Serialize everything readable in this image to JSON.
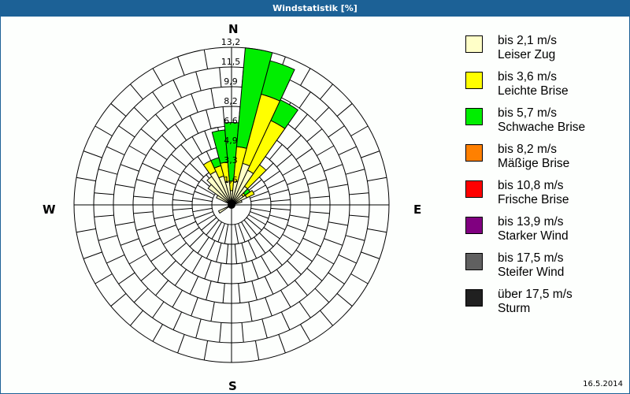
{
  "window": {
    "title": "Windstatistik [%]",
    "date": "16.5.2014"
  },
  "compass": {
    "n": "N",
    "e": "E",
    "s": "S",
    "w": "W"
  },
  "legend": [
    {
      "range": "bis 2,1 m/s",
      "name": "Leiser Zug",
      "color": "#ffffc8"
    },
    {
      "range": "bis 3,6 m/s",
      "name": "Leichte Brise",
      "color": "#ffff00"
    },
    {
      "range": "bis 5,7 m/s",
      "name": "Schwache Brise",
      "color": "#00ee00"
    },
    {
      "range": "bis 8,2 m/s",
      "name": "Mäßige Brise",
      "color": "#ff8000"
    },
    {
      "range": "bis 10,8 m/s",
      "name": "Frische Brise",
      "color": "#ff0000"
    },
    {
      "range": "bis 13,9 m/s",
      "name": "Starker Wind",
      "color": "#800080"
    },
    {
      "range": "bis 17,5 m/s",
      "name": "Steifer Wind",
      "color": "#606060"
    },
    {
      "range": "über 17,5 m/s",
      "name": "Sturm",
      "color": "#202020"
    }
  ],
  "chart_data": {
    "type": "polar-stacked-bar",
    "title": "Windstatistik [%]",
    "unit": "%",
    "radial_ticks": [
      "1,6",
      "3,3",
      "4,9",
      "6,6",
      "8,2",
      "9,9",
      "11,5",
      "13,2"
    ],
    "rmax": 13.2,
    "sector_width_deg": 10,
    "series_names": [
      "bis 2,1 m/s",
      "bis 3,6 m/s",
      "bis 5,7 m/s"
    ],
    "sectors": [
      {
        "dir": 320,
        "cumulative": [
          2.9,
          2.9,
          2.9
        ]
      },
      {
        "dir": 330,
        "cumulative": [
          3.1,
          4.1,
          4.1
        ]
      },
      {
        "dir": 340,
        "cumulative": [
          2.5,
          3.4,
          4.1
        ]
      },
      {
        "dir": 350,
        "cumulative": [
          2.0,
          3.6,
          6.3
        ]
      },
      {
        "dir": 0,
        "cumulative": [
          1.2,
          2.0,
          6.9
        ]
      },
      {
        "dir": 10,
        "cumulative": [
          2.0,
          4.9,
          13.2
        ]
      },
      {
        "dir": 20,
        "cumulative": [
          3.6,
          9.6,
          12.5
        ]
      },
      {
        "dir": 30,
        "cumulative": [
          3.2,
          7.8,
          9.7
        ]
      },
      {
        "dir": 40,
        "cumulative": [
          1.9,
          4.1,
          4.1
        ]
      },
      {
        "dir": 50,
        "cumulative": [
          1.2,
          1.4,
          1.9
        ]
      },
      {
        "dir": 60,
        "cumulative": [
          1.4,
          2.1,
          2.1
        ]
      },
      {
        "dir": 70,
        "cumulative": [
          0.9,
          0.9,
          0.9
        ]
      },
      {
        "dir": 240,
        "cumulative": [
          1.2,
          1.2,
          1.2
        ]
      },
      {
        "dir": 300,
        "cumulative": [
          1.4,
          1.4,
          1.4
        ]
      },
      {
        "dir": 310,
        "cumulative": [
          2.4,
          2.4,
          2.4
        ]
      }
    ]
  }
}
